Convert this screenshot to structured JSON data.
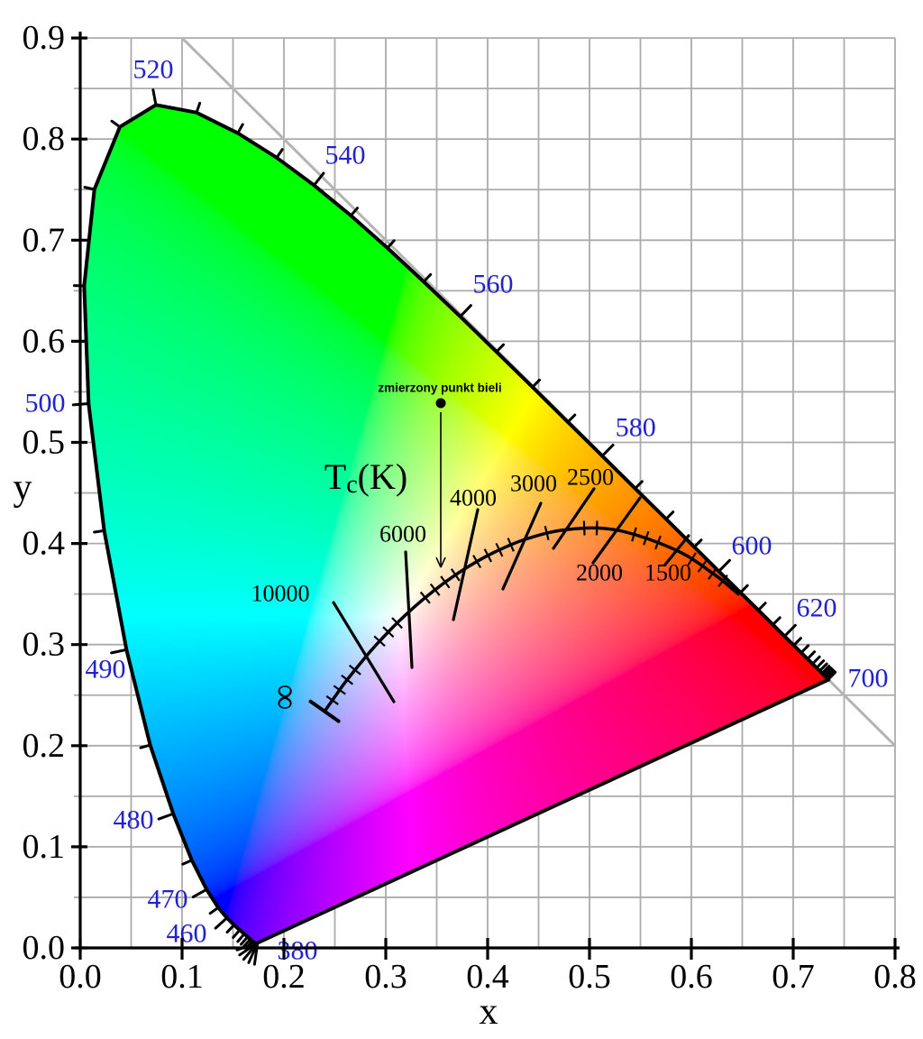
{
  "chart_data": {
    "type": "area",
    "title": "",
    "diagram_kind": "CIE 1931 xy chromaticity diagram with Planckian locus",
    "xlabel": "x",
    "ylabel": "y",
    "xlim": [
      0,
      0.8
    ],
    "ylim": [
      0,
      0.9
    ],
    "grid_step": 0.05,
    "x_tick_labels": [
      "0.0",
      "0.1",
      "0.2",
      "0.3",
      "0.4",
      "0.5",
      "0.6",
      "0.7",
      "0.8"
    ],
    "y_tick_labels": [
      "0.0",
      "0.1",
      "0.2",
      "0.3",
      "0.4",
      "0.5",
      "0.6",
      "0.7",
      "0.8",
      "0.9"
    ],
    "diagonal_line": {
      "from": [
        0.1,
        0.9
      ],
      "to": [
        0.8,
        0.2
      ]
    },
    "spectral_locus": [
      [
        380,
        0.1741,
        0.005
      ],
      [
        385,
        0.174,
        0.005
      ],
      [
        390,
        0.1738,
        0.0049
      ],
      [
        395,
        0.1736,
        0.0049
      ],
      [
        400,
        0.1733,
        0.0048
      ],
      [
        405,
        0.173,
        0.0048
      ],
      [
        410,
        0.1726,
        0.0048
      ],
      [
        415,
        0.1721,
        0.0048
      ],
      [
        420,
        0.1714,
        0.0051
      ],
      [
        425,
        0.1703,
        0.0058
      ],
      [
        430,
        0.1689,
        0.0069
      ],
      [
        435,
        0.1669,
        0.0086
      ],
      [
        440,
        0.1644,
        0.0109
      ],
      [
        445,
        0.1611,
        0.0138
      ],
      [
        450,
        0.1566,
        0.0177
      ],
      [
        455,
        0.151,
        0.0227
      ],
      [
        460,
        0.144,
        0.0297
      ],
      [
        465,
        0.1355,
        0.0399
      ],
      [
        470,
        0.1241,
        0.0578
      ],
      [
        475,
        0.1096,
        0.0868
      ],
      [
        480,
        0.0913,
        0.1327
      ],
      [
        485,
        0.0687,
        0.2007
      ],
      [
        490,
        0.0454,
        0.295
      ],
      [
        495,
        0.0235,
        0.4127
      ],
      [
        500,
        0.0082,
        0.5384
      ],
      [
        505,
        0.0039,
        0.6548
      ],
      [
        510,
        0.0139,
        0.7502
      ],
      [
        515,
        0.0389,
        0.812
      ],
      [
        520,
        0.0743,
        0.8338
      ],
      [
        525,
        0.1142,
        0.8262
      ],
      [
        530,
        0.1547,
        0.8059
      ],
      [
        535,
        0.1929,
        0.7816
      ],
      [
        540,
        0.2296,
        0.7543
      ],
      [
        545,
        0.2658,
        0.7243
      ],
      [
        550,
        0.3016,
        0.6923
      ],
      [
        555,
        0.3373,
        0.6589
      ],
      [
        560,
        0.3731,
        0.6245
      ],
      [
        565,
        0.4087,
        0.5896
      ],
      [
        570,
        0.4441,
        0.5547
      ],
      [
        575,
        0.4788,
        0.5202
      ],
      [
        580,
        0.5125,
        0.4866
      ],
      [
        585,
        0.5448,
        0.4544
      ],
      [
        590,
        0.5752,
        0.4242
      ],
      [
        595,
        0.6029,
        0.3965
      ],
      [
        600,
        0.627,
        0.3725
      ],
      [
        605,
        0.6482,
        0.3514
      ],
      [
        610,
        0.6658,
        0.334
      ],
      [
        615,
        0.6801,
        0.3197
      ],
      [
        620,
        0.6915,
        0.3083
      ],
      [
        625,
        0.7006,
        0.2993
      ],
      [
        630,
        0.7079,
        0.292
      ],
      [
        635,
        0.714,
        0.2859
      ],
      [
        640,
        0.719,
        0.2809
      ],
      [
        645,
        0.723,
        0.277
      ],
      [
        650,
        0.726,
        0.274
      ],
      [
        655,
        0.7283,
        0.2717
      ],
      [
        660,
        0.73,
        0.27
      ],
      [
        665,
        0.7311,
        0.2689
      ],
      [
        670,
        0.732,
        0.268
      ],
      [
        675,
        0.7327,
        0.2673
      ],
      [
        680,
        0.7334,
        0.2666
      ],
      [
        685,
        0.734,
        0.266
      ],
      [
        690,
        0.7344,
        0.2656
      ],
      [
        695,
        0.7346,
        0.2654
      ],
      [
        700,
        0.7347,
        0.2653
      ]
    ],
    "labeled_wavelengths": [
      460,
      470,
      480,
      490,
      500,
      520,
      540,
      560,
      580,
      600,
      620,
      700
    ],
    "wavelength_labels": [
      {
        "text": "520",
        "x": 0.0717,
        "y": 0.8689
      },
      {
        "text": "540",
        "x": 0.2602,
        "y": 0.7841
      },
      {
        "text": "560",
        "x": 0.4053,
        "y": 0.6566
      },
      {
        "text": "580",
        "x": 0.5454,
        "y": 0.5147
      },
      {
        "text": "600",
        "x": 0.6593,
        "y": 0.3978
      },
      {
        "text": "620",
        "x": 0.723,
        "y": 0.3363
      },
      {
        "text": "700",
        "x": 0.7735,
        "y": 0.2667
      },
      {
        "text": "500",
        "x": -0.0345,
        "y": 0.5388
      },
      {
        "text": "490",
        "x": 0.0248,
        "y": 0.2756
      },
      {
        "text": "480",
        "x": 0.0522,
        "y": 0.1267
      },
      {
        "text": "470",
        "x": 0.0858,
        "y": 0.0482
      },
      {
        "text": "460",
        "x": 0.1044,
        "y": 0.0143
      },
      {
        "text": "380",
        "x": 0.2133,
        "y": -0.0027
      }
    ],
    "tip_fan_angles_deg": [
      98,
      114,
      130,
      146,
      161
    ],
    "planckian_locus": [
      [
        "inf",
        0.2399,
        0.234
      ],
      [
        "20000",
        0.2565,
        0.2577
      ],
      [
        "15000",
        0.2637,
        0.2673
      ],
      [
        "10000",
        0.2807,
        0.2884
      ],
      [
        "9000",
        0.2869,
        0.2956
      ],
      [
        "8000",
        0.2952,
        0.3048
      ],
      [
        "7000",
        0.3064,
        0.3166
      ],
      [
        "6500",
        0.3135,
        0.3237
      ],
      [
        "6000",
        0.3221,
        0.3318
      ],
      [
        "5500",
        0.3325,
        0.3411
      ],
      [
        "5000",
        0.3451,
        0.3516
      ],
      [
        "4500",
        0.3608,
        0.3636
      ],
      [
        "4000",
        0.3805,
        0.3768
      ],
      [
        "3500",
        0.4053,
        0.3907
      ],
      [
        "3000",
        0.4369,
        0.4041
      ],
      [
        "2500",
        0.477,
        0.4137
      ],
      [
        "2000",
        0.5267,
        0.4133
      ],
      [
        "1500",
        0.5857,
        0.3931
      ],
      [
        "1200",
        0.625,
        0.3675
      ],
      [
        "1100",
        0.639,
        0.356
      ],
      [
        "1050",
        0.646,
        0.35
      ]
    ],
    "isotherms": [
      {
        "label": "10000",
        "from": [
          0.2487,
          0.3416
        ],
        "to": [
          0.308,
          0.2435
        ],
        "label_pos": [
          0.1965,
          0.3506
        ]
      },
      {
        "label": "6000",
        "from": [
          0.3195,
          0.3916
        ],
        "to": [
          0.3257,
          0.2774
        ],
        "label_pos": [
          0.3168,
          0.4094
        ]
      },
      {
        "label": "4000",
        "from": [
          0.3903,
          0.4335
        ],
        "to": [
          0.3664,
          0.3247
        ],
        "label_pos": [
          0.3858,
          0.4451
        ]
      },
      {
        "label": "3000",
        "from": [
          0.4522,
          0.4398
        ],
        "to": [
          0.415,
          0.355
        ],
        "label_pos": [
          0.4451,
          0.4594
        ]
      },
      {
        "label": "2500",
        "from": [
          0.5044,
          0.4541
        ],
        "to": [
          0.4646,
          0.3952
        ],
        "label_pos": [
          0.5009,
          0.4657
        ]
      },
      {
        "label": "2000",
        "from": [
          0.5496,
          0.4451
        ],
        "to": [
          0.5035,
          0.3809
        ],
        "label_pos": [
          0.5097,
          0.3711
        ]
      },
      {
        "label": "1500",
        "from": [
          0.5973,
          0.4077
        ],
        "to": [
          0.5743,
          0.3791
        ],
        "label_pos": [
          0.577,
          0.3711
        ]
      }
    ],
    "infinity_symbol": {
      "text": "∞",
      "pos": [
        0.2027,
        0.248
      ],
      "rotation_deg": 90
    },
    "temperature_axis_label": {
      "text_main": "T",
      "text_sub": "c",
      "text_rest": "(K)",
      "pos": [
        0.2805,
        0.4666
      ]
    },
    "white_point": {
      "label": "zmierzony punkt bieli",
      "point": [
        0.354,
        0.5388
      ],
      "arrow_tip": [
        0.354,
        0.3773
      ],
      "label_pos": [
        0.3531,
        0.554
      ]
    },
    "colors": {
      "wavelength_label_blue": "#2121cd",
      "grid_gray": "#ababab",
      "diagonal_gray": "#b4b4b4",
      "outline_black": "#000000",
      "text_black": "#000000"
    }
  }
}
